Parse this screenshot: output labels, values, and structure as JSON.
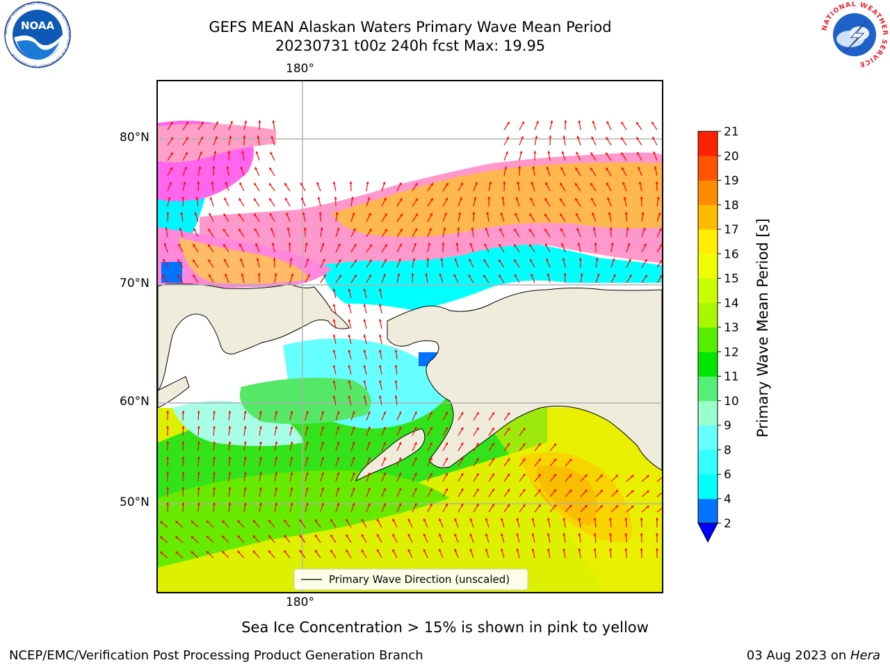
{
  "header": {
    "title_line1": "GEFS MEAN Alaskan Waters Primary Wave Mean Period",
    "title_line2": "20230731 t00z 240h fcst   Max: 19.95"
  },
  "map": {
    "lon_labels": [
      "180°",
      "180°"
    ],
    "lat_labels": [
      "80°N",
      "70°N",
      "60°N",
      "50°N"
    ],
    "legend_label": "Primary Wave Direction (unscaled)",
    "arrow_color": "#ff0000",
    "land_color": "#efecdc"
  },
  "colorbar": {
    "title": "Primary Wave Mean Period [s]",
    "ticks": [
      "2",
      "4",
      "6",
      "8",
      "9",
      "10",
      "11",
      "12",
      "13",
      "14",
      "15",
      "16",
      "17",
      "18",
      "19",
      "20",
      "21"
    ],
    "colors": [
      "#0073ff",
      "#00ffff",
      "#33ffff",
      "#66ffff",
      "#99ffcc",
      "#55ee77",
      "#00e600",
      "#55ee00",
      "#aaf500",
      "#c8ff00",
      "#f0ff00",
      "#ffee00",
      "#ffbb00",
      "#ff8c00",
      "#ff5500",
      "#ff2200",
      "#ff0000"
    ],
    "under_color": "#0000ff"
  },
  "caption": "Sea Ice Concentration > 15% is shown in pink to yellow",
  "footer": {
    "left": "NCEP/EMC/Verification Post Processing Product Generation Branch",
    "right_date": "03 Aug 2023 on ",
    "right_machine": "Hera"
  },
  "logos": {
    "noaa_text": "NOAA",
    "noaa_ring_text": "NATIONAL OCEANIC AND ATMOSPHERIC ADMINISTRATION · U.S. DEPARTMENT OF COMMERCE",
    "nws_ring_text": "NATIONAL WEATHER SERVICE"
  }
}
